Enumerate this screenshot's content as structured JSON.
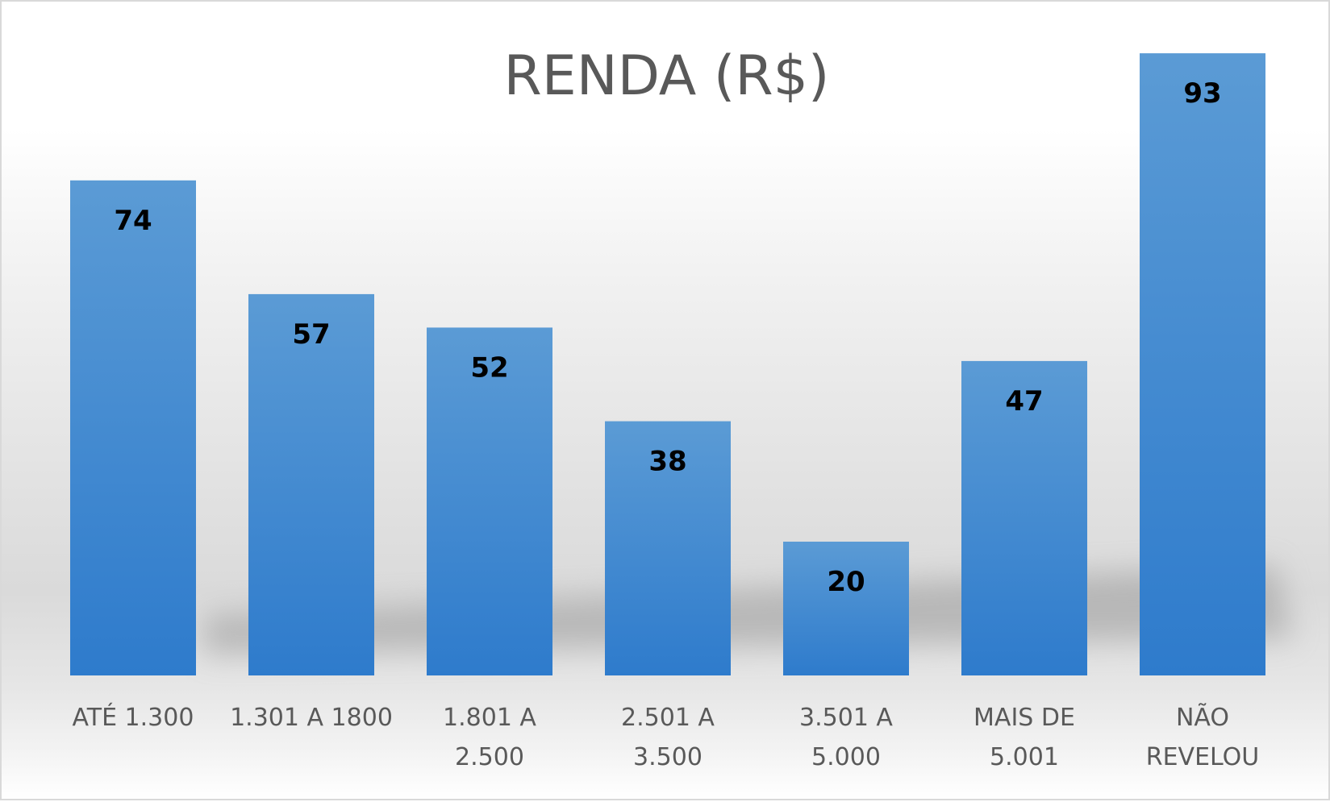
{
  "chart_data": {
    "type": "bar",
    "title": "RENDA (R$)",
    "xlabel": "",
    "ylabel": "",
    "categories": [
      [
        "ATÉ 1.300"
      ],
      [
        "1.301 A 1800"
      ],
      [
        "1.801 A",
        "2.500"
      ],
      [
        "2.501 A",
        "3.500"
      ],
      [
        "3.501 A",
        "5.000"
      ],
      [
        "MAIS DE",
        "5.001"
      ],
      [
        "NÃO",
        "REVELOU"
      ]
    ],
    "values": [
      74,
      57,
      52,
      38,
      20,
      47,
      93
    ],
    "ylim": [
      0,
      100
    ],
    "grid": false,
    "legend": "none",
    "data_labels": "inside-end",
    "colors": {
      "bar_top": "#5b9bd5",
      "bar_bottom": "#2e7bcc",
      "label": "#000000",
      "tick": "#595959",
      "title": "#595959"
    }
  }
}
